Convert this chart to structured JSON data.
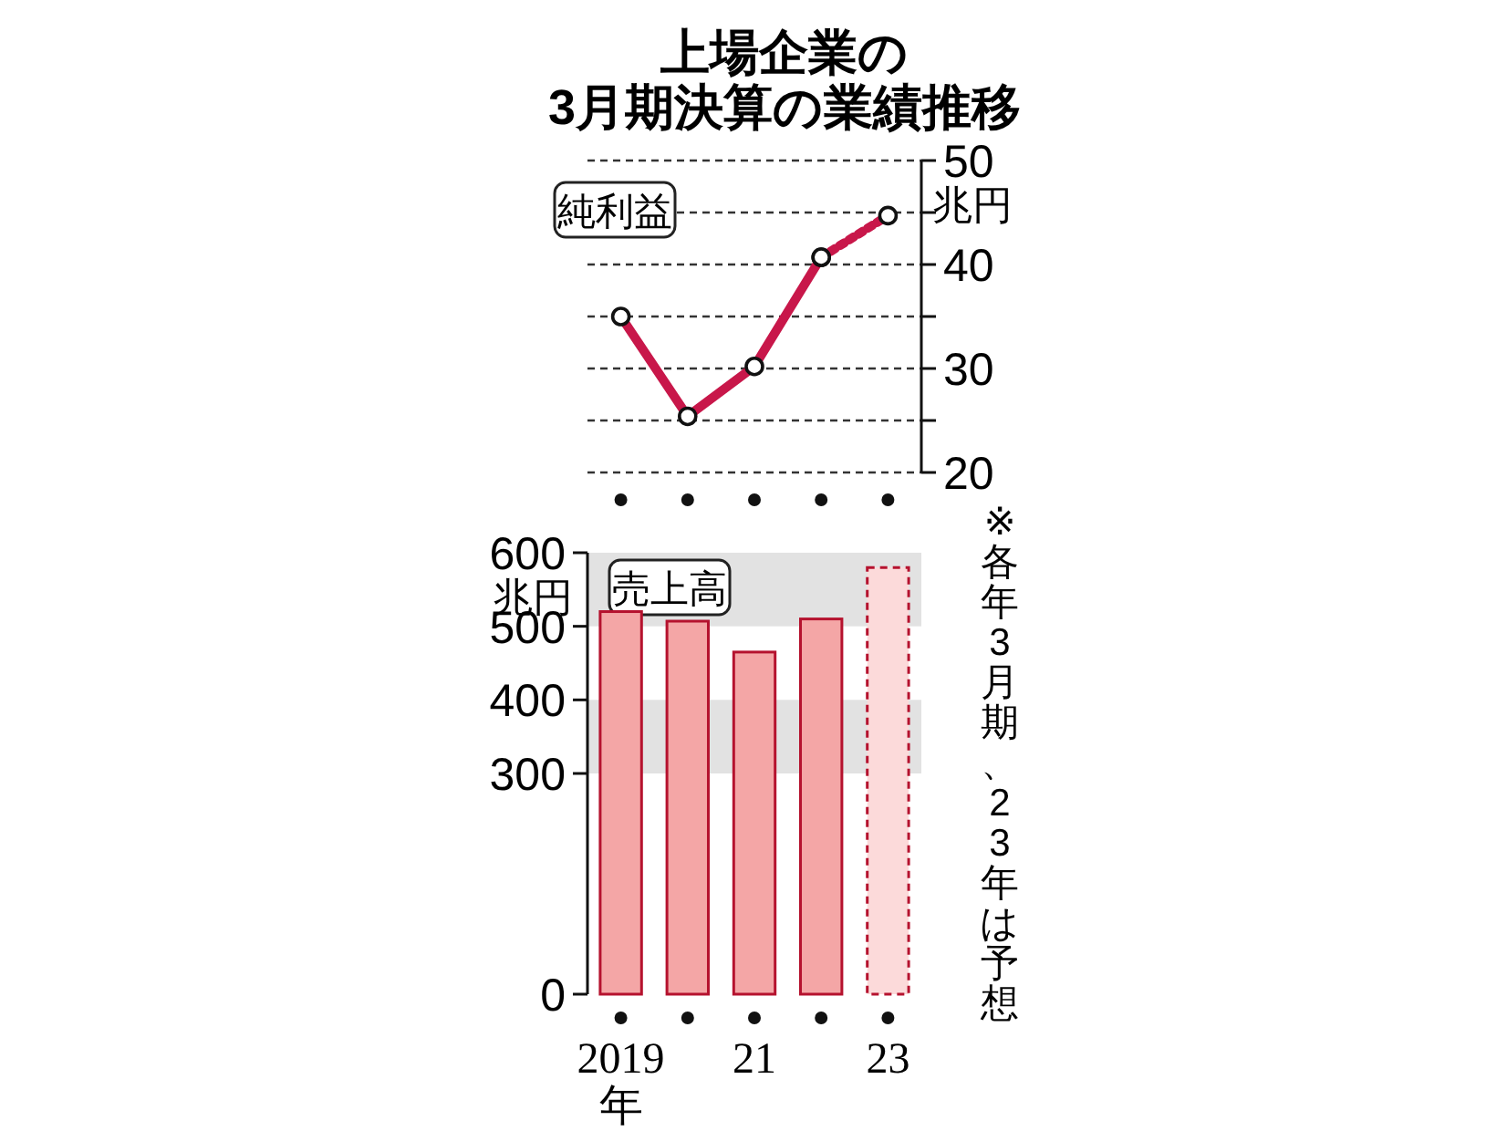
{
  "chart_data": [
    {
      "type": "line",
      "title": "上場企業の\n3月期決算の業績推移",
      "subtitle": "純利益",
      "ylabel": "兆円",
      "categories": [
        null,
        null,
        null,
        null,
        null
      ],
      "series": [
        {
          "color": "#c8174a",
          "values": [
            35,
            25.4,
            30.2,
            40.7,
            null
          ],
          "line_style": "solid"
        },
        {
          "color": "#c8174a",
          "values": [
            null,
            null,
            null,
            40.7,
            44.7
          ],
          "line_style": "dotted"
        }
      ],
      "ylim": [
        20,
        50
      ],
      "yticks": [
        20,
        {
          "value": 25,
          "label": null
        },
        30,
        {
          "value": 35,
          "label": null
        },
        40,
        {
          "value": 45,
          "label": null
        },
        50
      ],
      "grid": "y",
      "marker": "circle"
    },
    {
      "type": "bar",
      "title": "売上高",
      "ylabel": "兆円",
      "categories": [
        "2019\n年",
        null,
        "21",
        null,
        "23"
      ],
      "values": [
        520,
        507,
        465,
        510,
        580
      ],
      "colors": [
        "#f4a6a6",
        "#f4a6a6",
        "#f4a6a6",
        "#f4a6a6",
        "#fcdada"
      ],
      "ylim": [
        0,
        600
      ],
      "yticks": [
        0,
        300,
        400,
        500,
        600
      ],
      "bands": [
        {
          "axis": "y",
          "from": 300,
          "to": 400,
          "color": "#e2e2e2"
        },
        {
          "axis": "y",
          "from": 500,
          "to": 600,
          "color": "#e2e2e2"
        }
      ],
      "annotations": [
        "※各年3月期、23年は予想"
      ]
    }
  ]
}
